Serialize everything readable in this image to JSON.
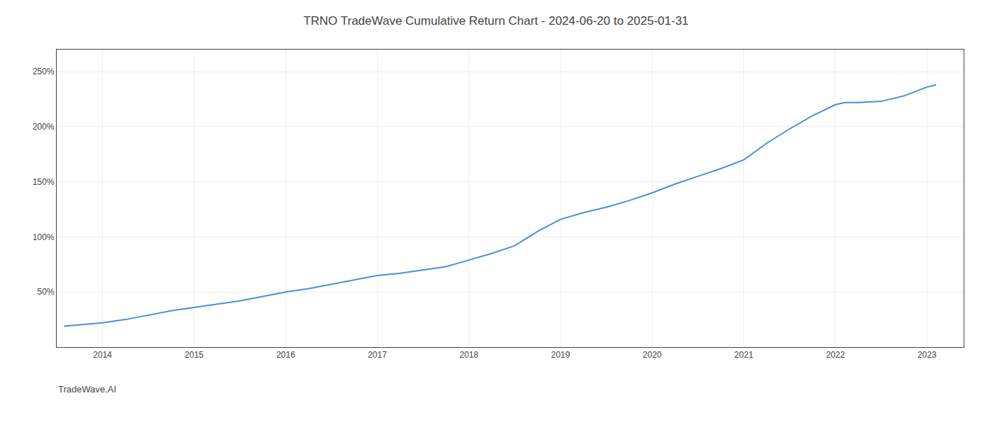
{
  "chart_data": {
    "type": "line",
    "title": "TRNO TradeWave Cumulative Return Chart - 2024-06-20 to 2025-01-31",
    "x": [
      2013.58,
      2014.0,
      2014.25,
      2014.5,
      2014.75,
      2015.0,
      2015.25,
      2015.5,
      2015.75,
      2016.0,
      2016.25,
      2016.5,
      2016.75,
      2017.0,
      2017.25,
      2017.5,
      2017.75,
      2018.0,
      2018.25,
      2018.5,
      2018.75,
      2019.0,
      2019.25,
      2019.5,
      2019.75,
      2020.0,
      2020.25,
      2020.5,
      2020.75,
      2021.0,
      2021.25,
      2021.5,
      2021.75,
      2022.0,
      2022.1,
      2022.25,
      2022.5,
      2022.75,
      2023.0,
      2023.1
    ],
    "values": [
      19,
      22,
      25,
      29,
      33,
      36,
      39,
      42,
      46,
      50,
      53,
      57,
      61,
      65,
      67,
      70,
      73,
      79,
      85,
      92,
      105,
      116,
      122,
      127,
      133,
      140,
      148,
      155,
      162,
      170,
      185,
      198,
      210,
      220,
      222,
      222,
      223,
      228,
      236,
      238
    ],
    "color": "#4a90d9",
    "xlim": [
      2013.5,
      2023.4
    ],
    "ylim": [
      0,
      270
    ],
    "xticks": [
      2014,
      2015,
      2016,
      2017,
      2018,
      2019,
      2020,
      2021,
      2022,
      2023
    ],
    "yticks": [
      {
        "value": 50,
        "label": "50%"
      },
      {
        "value": 100,
        "label": "100%"
      },
      {
        "value": 150,
        "label": "150%"
      },
      {
        "value": 200,
        "label": "200%"
      },
      {
        "value": 250,
        "label": "250%"
      }
    ],
    "grid": true,
    "annotations": [
      "TradeWave.AI"
    ]
  }
}
